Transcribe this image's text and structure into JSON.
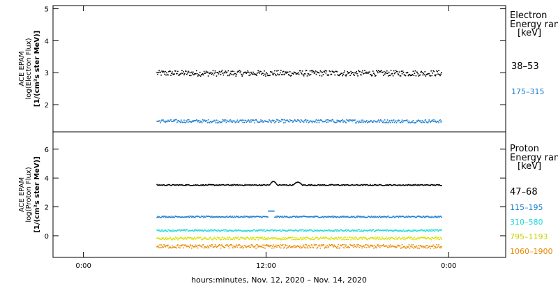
{
  "chart_data": [
    {
      "type": "scatter",
      "panel": "electron",
      "ylabel_lines": [
        "ACE EPAM",
        "log(Electron Flux)",
        "[1/(cm²s ster MeV)]"
      ],
      "ylim": [
        1.15,
        5.1
      ],
      "yticks": [
        2,
        3,
        4,
        5
      ],
      "legend_title": [
        "Electron",
        "Energy ran"
      ],
      "legend_unit": "[keV]",
      "series": [
        {
          "name": "38–53",
          "color": "#000000",
          "x_range": [
            9.6,
            47.0
          ],
          "level": 3.0,
          "spread": 0.09
        },
        {
          "name": "175–315",
          "color": "#1e7fd0",
          "x_range": [
            9.6,
            47.0
          ],
          "level": 1.5,
          "spread": 0.05
        }
      ]
    },
    {
      "type": "scatter",
      "panel": "proton",
      "ylabel_lines": [
        "ACE EPAM",
        "log(Proton Flux)",
        "[1/(cm²s ster MeV)]"
      ],
      "ylim": [
        -1.5,
        7.2
      ],
      "yticks": [
        0,
        2,
        4,
        6
      ],
      "legend_title": [
        "Proton",
        "Energy ran"
      ],
      "legend_unit": "[keV]",
      "series": [
        {
          "name": "47–68",
          "color": "#000000",
          "x_range": [
            9.6,
            47.0
          ],
          "level": 3.55,
          "spread": 0.04
        },
        {
          "name": "115–195",
          "color": "#1e7fd0",
          "x_range": [
            9.6,
            47.0
          ],
          "level": 1.35,
          "spread": 0.05
        },
        {
          "name": "310–580",
          "color": "#22d8d8",
          "x_range": [
            9.6,
            47.0
          ],
          "level": 0.4,
          "spread": 0.06
        },
        {
          "name": "795–1193",
          "color": "#d8e000",
          "x_range": [
            9.6,
            47.0
          ],
          "level": -0.15,
          "spread": 0.09
        },
        {
          "name": "1060–1900",
          "color": "#e88a00",
          "x_range": [
            9.6,
            47.0
          ],
          "level": -0.7,
          "spread": 0.13
        }
      ]
    }
  ],
  "x_axis": {
    "xlim": [
      -4.0,
      55.5
    ],
    "ticks": [
      {
        "value": 0,
        "label": "0:00"
      },
      {
        "value": 24,
        "label": "12:00"
      },
      {
        "value": 48,
        "label": "0:00"
      }
    ],
    "xlabel": "hours:minutes, Nov. 12, 2020 – Nov. 14, 2020"
  }
}
